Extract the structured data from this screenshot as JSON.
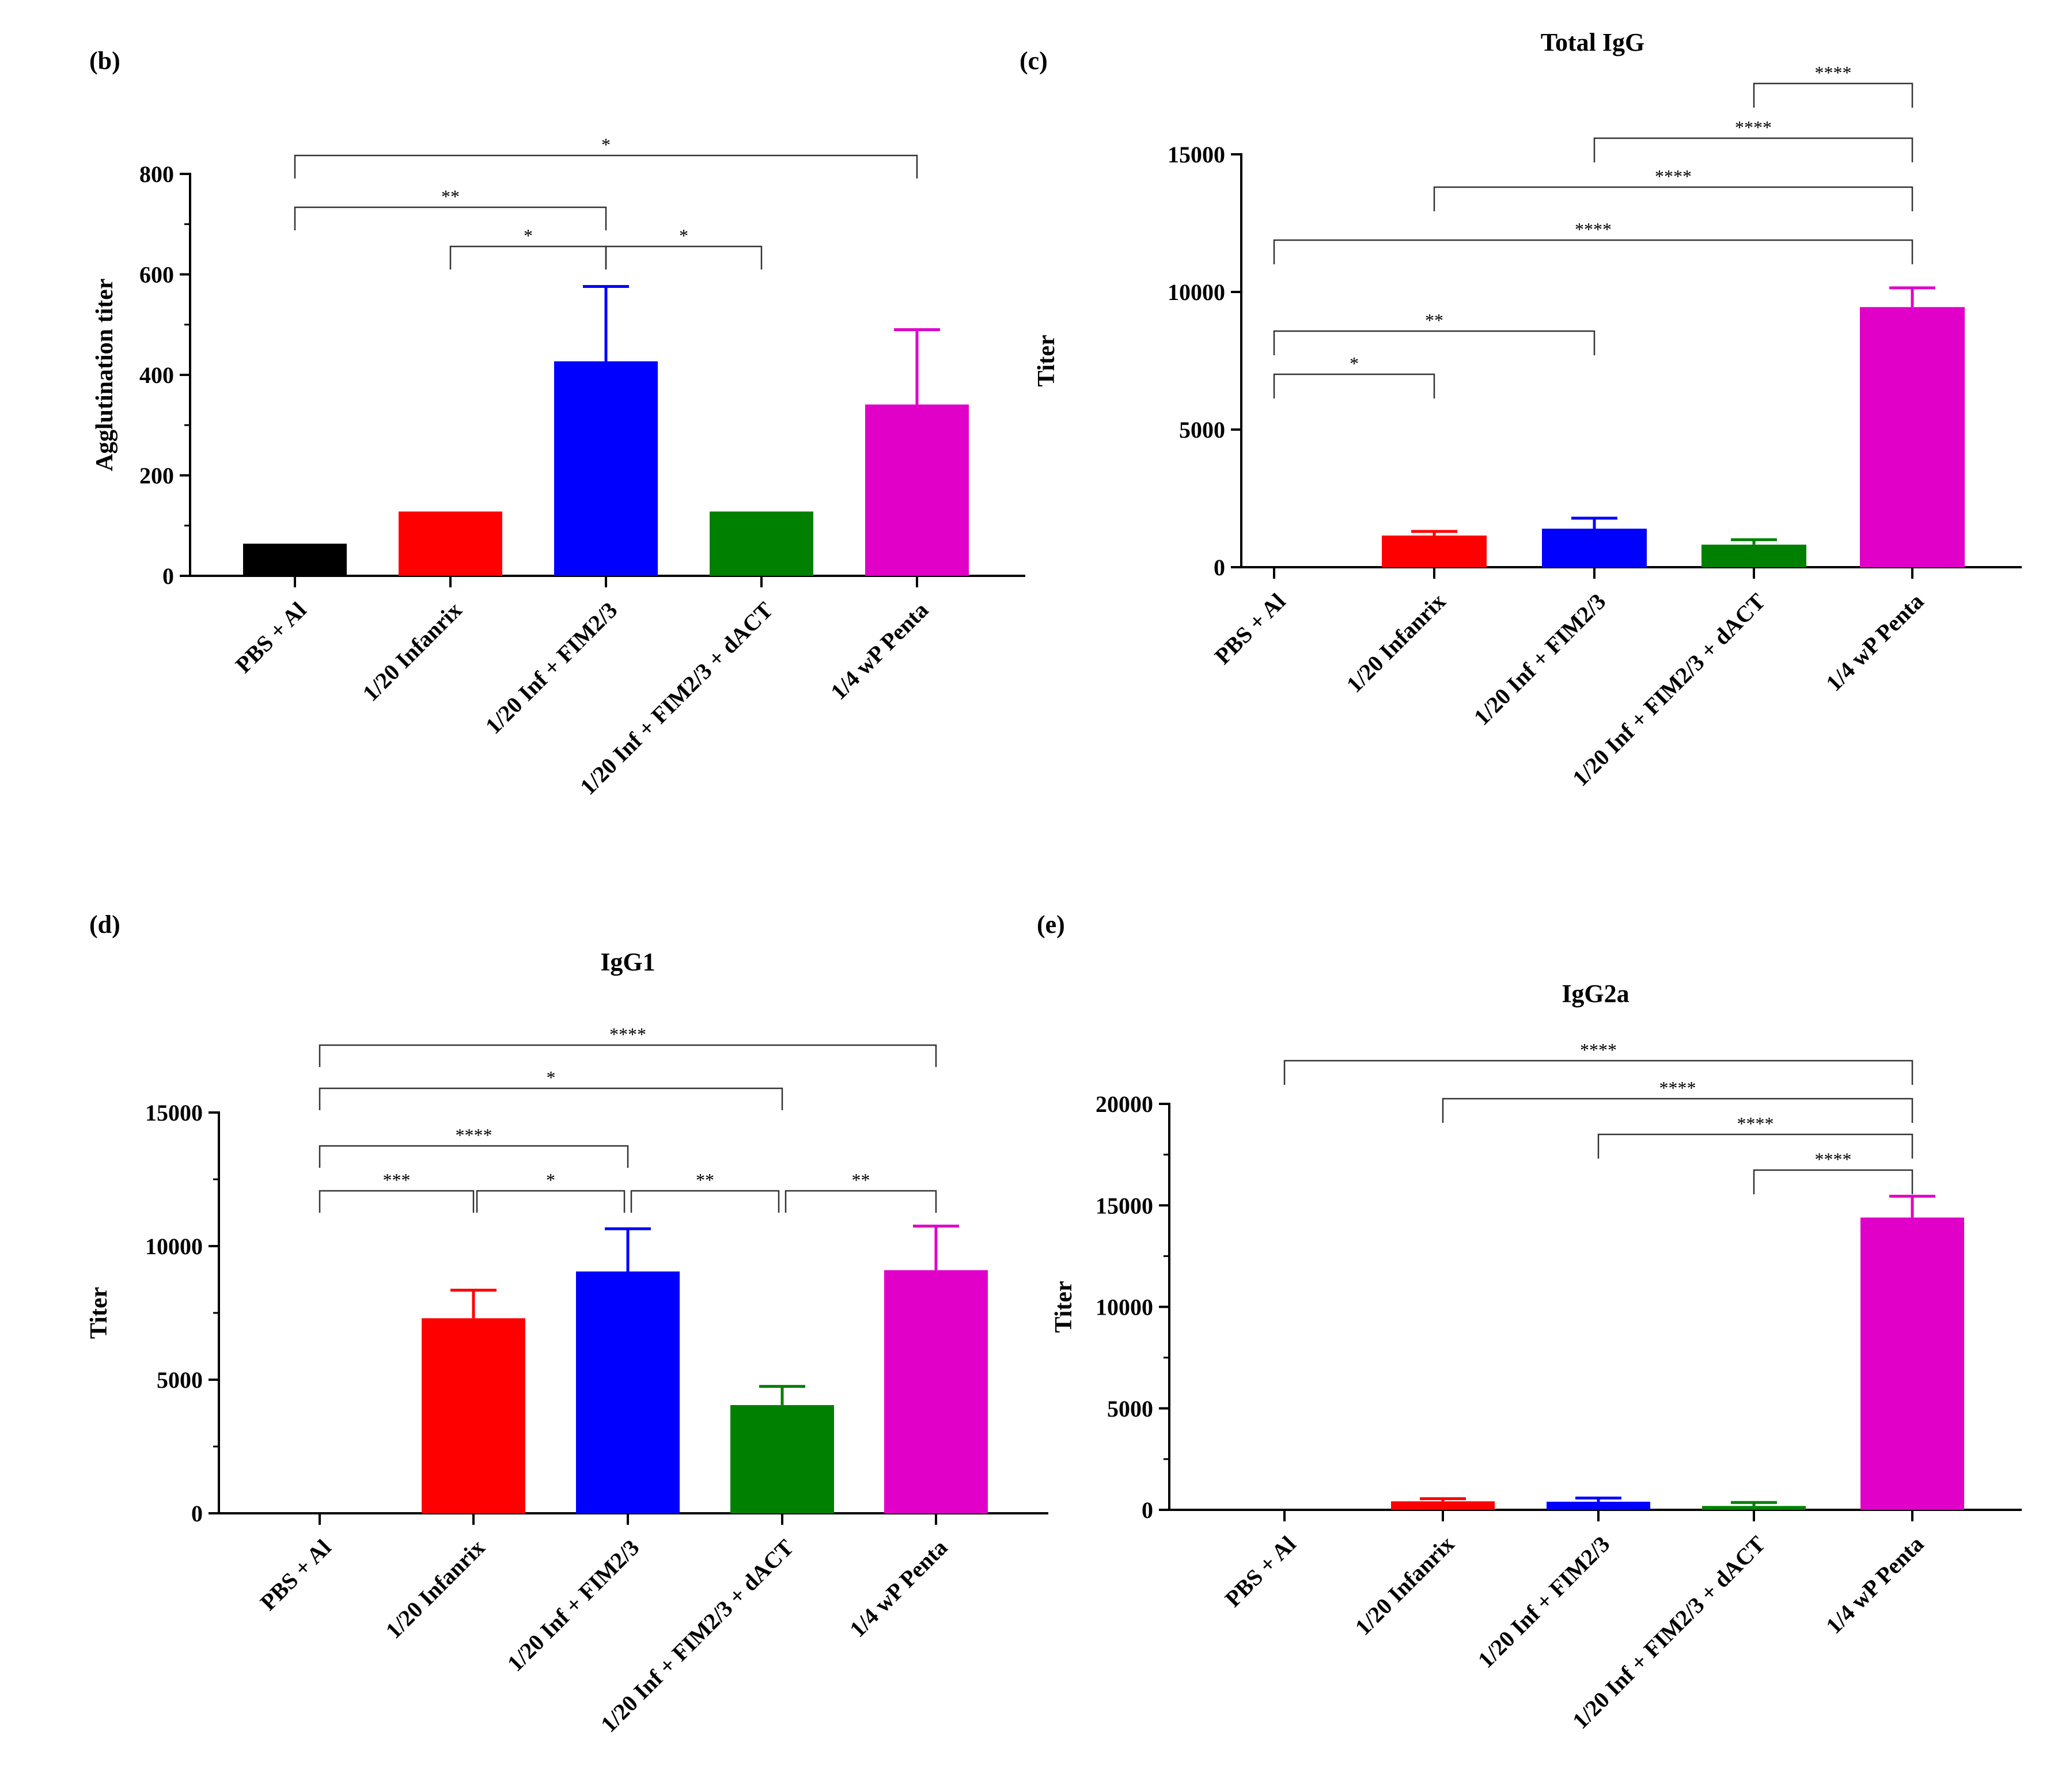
{
  "chart_data": [
    {
      "panel": "(b)",
      "type": "bar",
      "title": "",
      "ylabel": "Agglutination titer",
      "ylim": [
        0,
        800
      ],
      "yticks": [
        "0",
        "200",
        "400",
        "600",
        "800"
      ],
      "categories": [
        "PBS + Al",
        "1/20 Infanrix",
        "1/20 Inf + FIM2/3",
        "1/20 Inf + FIM2/3 + dACT",
        "1/4 wP Penta"
      ],
      "colors": [
        "#000000",
        "#ff0000",
        "#0000ff",
        "#008000",
        "#e000c8"
      ],
      "values": [
        64,
        128,
        427,
        128,
        341
      ],
      "errors": [
        0,
        0,
        149,
        0,
        149
      ],
      "significance": [
        {
          "from": 0,
          "to": 4,
          "label": "*"
        },
        {
          "from": 0,
          "to": 2,
          "label": "**"
        },
        {
          "from": 1,
          "to": 2,
          "label": "*"
        },
        {
          "from": 2,
          "to": 3,
          "label": "*"
        }
      ]
    },
    {
      "panel": "(c)",
      "type": "bar",
      "title": "Total IgG",
      "ylabel": "Titer",
      "ylim": [
        0,
        15000
      ],
      "yticks": [
        "0",
        "5000",
        "10000",
        "15000"
      ],
      "categories": [
        "PBS + Al",
        "1/20 Infanrix",
        "1/20 Inf + FIM2/3",
        "1/20 Inf + FIM2/3 + dACT",
        "1/4 wP Penta"
      ],
      "colors": [
        "#000000",
        "#ff0000",
        "#0000ff",
        "#008000",
        "#e000c8"
      ],
      "values": [
        0,
        1150,
        1400,
        820,
        9450
      ],
      "errors": [
        0,
        150,
        380,
        180,
        700
      ],
      "significance": [
        {
          "from": 3,
          "to": 4,
          "label": "****"
        },
        {
          "from": 2,
          "to": 4,
          "label": "****"
        },
        {
          "from": 1,
          "to": 4,
          "label": "****"
        },
        {
          "from": 0,
          "to": 4,
          "label": "****"
        },
        {
          "from": 0,
          "to": 2,
          "label": "**"
        },
        {
          "from": 0,
          "to": 1,
          "label": "*"
        }
      ]
    },
    {
      "panel": "(d)",
      "type": "bar",
      "title": "IgG1",
      "ylabel": "Titer",
      "ylim": [
        0,
        15000
      ],
      "yticks": [
        "0",
        "5000",
        "10000",
        "15000"
      ],
      "categories": [
        "PBS + Al",
        "1/20 Infanrix",
        "1/20 Inf + FIM2/3",
        "1/20 Inf + FIM2/3 + dACT",
        "1/4 wP Penta"
      ],
      "colors": [
        "#000000",
        "#ff0000",
        "#0000ff",
        "#008000",
        "#e000c8"
      ],
      "values": [
        0,
        7300,
        9050,
        4050,
        9100
      ],
      "errors": [
        0,
        1050,
        1600,
        700,
        1650
      ],
      "significance": [
        {
          "from": 0,
          "to": 4,
          "label": "****"
        },
        {
          "from": 0,
          "to": 3,
          "label": "*"
        },
        {
          "from": 0,
          "to": 2,
          "label": "****"
        },
        {
          "from": 0,
          "to": 1,
          "label": "***"
        },
        {
          "from": 1,
          "to": 2,
          "label": "*"
        },
        {
          "from": 2,
          "to": 3,
          "label": "**"
        },
        {
          "from": 3,
          "to": 4,
          "label": "**"
        }
      ]
    },
    {
      "panel": "(e)",
      "type": "bar",
      "title": "IgG2a",
      "ylabel": "Titer",
      "ylim": [
        0,
        20000
      ],
      "yticks": [
        "0",
        "5000",
        "10000",
        "15000",
        "20000"
      ],
      "categories": [
        "PBS + Al",
        "1/20 Infanrix",
        "1/20 Inf + FIM2/3",
        "1/20 Inf + FIM2/3 + dACT",
        "1/4 wP Penta"
      ],
      "colors": [
        "#000000",
        "#ff0000",
        "#0000ff",
        "#008000",
        "#e000c8"
      ],
      "values": [
        40,
        420,
        400,
        190,
        14400
      ],
      "errors": [
        0,
        130,
        180,
        170,
        1050
      ],
      "significance": [
        {
          "from": 0,
          "to": 4,
          "label": "****"
        },
        {
          "from": 1,
          "to": 4,
          "label": "****"
        },
        {
          "from": 2,
          "to": 4,
          "label": "****"
        },
        {
          "from": 3,
          "to": 4,
          "label": "****"
        }
      ]
    }
  ]
}
